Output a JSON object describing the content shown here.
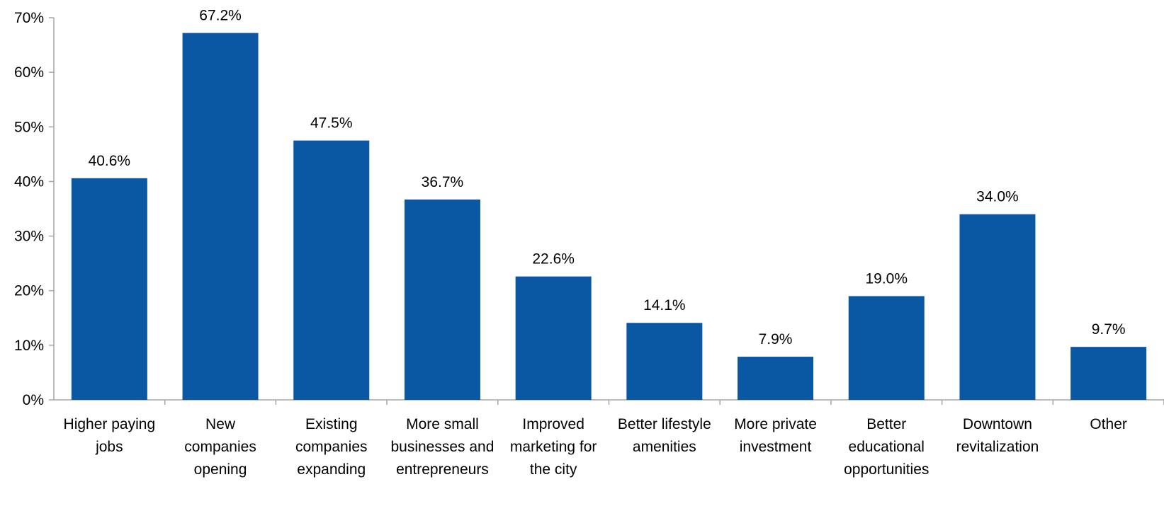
{
  "chart_data": {
    "type": "bar",
    "categories": [
      [
        "Higher paying",
        "jobs"
      ],
      [
        "New",
        "companies",
        "opening"
      ],
      [
        "Existing",
        "companies",
        "expanding"
      ],
      [
        "More small",
        "businesses and",
        "entrepreneurs"
      ],
      [
        "Improved",
        "marketing for",
        "the city"
      ],
      [
        "Better lifestyle",
        "amenities"
      ],
      [
        "More private",
        "investment"
      ],
      [
        "Better",
        "educational",
        "opportunities"
      ],
      [
        "Downtown",
        "revitalization"
      ],
      [
        "Other"
      ]
    ],
    "values": [
      40.6,
      67.2,
      47.5,
      36.7,
      22.6,
      14.1,
      7.9,
      19.0,
      34.0,
      9.7
    ],
    "value_labels": [
      "40.6%",
      "67.2%",
      "47.5%",
      "36.7%",
      "22.6%",
      "14.1%",
      "7.9%",
      "19.0%",
      "34.0%",
      "9.7%"
    ],
    "y_ticks": [
      0,
      10,
      20,
      30,
      40,
      50,
      60,
      70
    ],
    "y_tick_labels": [
      "0%",
      "10%",
      "20%",
      "30%",
      "40%",
      "50%",
      "60%",
      "70%"
    ],
    "ylim": [
      0,
      70
    ],
    "title": "",
    "xlabel": "",
    "ylabel": "",
    "grid": false,
    "legend": "none",
    "bar_color": "#0A58A4",
    "axis_color": "#A6A6A6"
  }
}
